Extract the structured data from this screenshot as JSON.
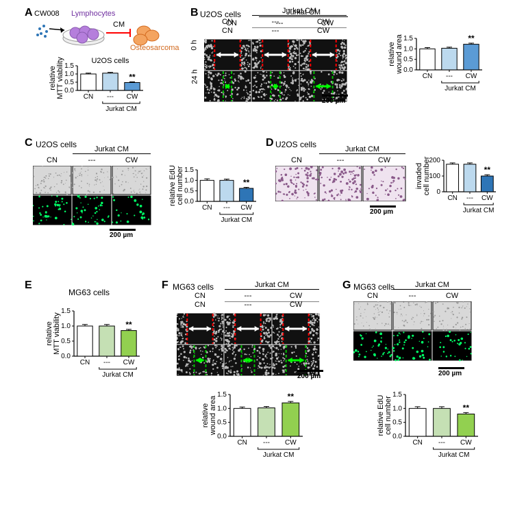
{
  "colors": {
    "white": "#ffffff",
    "lightblue": "#bcd9ee",
    "blue": "#5b9bd5",
    "darkblue": "#2e75b6",
    "lightgreen": "#c5e0b4",
    "green": "#92d050",
    "black": "#000000",
    "gray_bf": "#d0d0d0",
    "dark_scratch": "#1a1a1a",
    "edu_dark": "#000000",
    "edu_green_dot": "#00ff7f",
    "invasion_pink": "#dcc5d8",
    "red": "#ff0000",
    "line_green": "#00c000",
    "orange": "#f4a460",
    "purple": "#b57edc"
  },
  "A": {
    "panel_label": "A",
    "diagram": {
      "cw008": "CW008",
      "lymph": "Lymphocytes",
      "cm": "CM",
      "osteo": "Osteosarcoma"
    },
    "chart": {
      "title": "U2OS cells",
      "ylabel": "relative\nMTT viability",
      "ylim": [
        0,
        1.5
      ],
      "ytick_step": 0.5,
      "categories": [
        "CN",
        "---",
        "CW"
      ],
      "values": [
        1.0,
        1.05,
        0.48
      ],
      "errors": [
        0.05,
        0.05,
        0.04
      ],
      "bar_colors": [
        "#ffffff",
        "#bcd9ee",
        "#5b9bd5"
      ],
      "sig": [
        "",
        "",
        "**"
      ],
      "bracket_label": "Jurkat CM"
    }
  },
  "B": {
    "panel_label": "B",
    "cell_title": "U2OS cells",
    "rows": [
      "0 h",
      "24 h"
    ],
    "categories": [
      "CN",
      "---",
      "CW"
    ],
    "bracket_label": "Jurkat CM",
    "scale": "200 µm",
    "chart": {
      "ylabel": "relative\nwound area",
      "ylim": [
        0,
        1.5
      ],
      "ytick_step": 0.5,
      "categories": [
        "CN",
        "---",
        "CW"
      ],
      "values": [
        1.0,
        1.03,
        1.22
      ],
      "errors": [
        0.06,
        0.05,
        0.05
      ],
      "bar_colors": [
        "#ffffff",
        "#bcd9ee",
        "#5b9bd5"
      ],
      "sig": [
        "",
        "",
        "**"
      ],
      "bracket_label": "Jurkat CM"
    }
  },
  "C": {
    "panel_label": "C",
    "cell_title": "U2OS cells",
    "categories": [
      "CN",
      "---",
      "CW"
    ],
    "bracket_label": "Jurkat CM",
    "scale": "200 µm",
    "chart": {
      "ylabel": "relative EdU\ncell number",
      "ylim": [
        0,
        1.5
      ],
      "ytick_step": 0.5,
      "categories": [
        "CN",
        "---",
        "CW"
      ],
      "values": [
        1.0,
        1.0,
        0.62
      ],
      "errors": [
        0.07,
        0.06,
        0.05
      ],
      "bar_colors": [
        "#ffffff",
        "#bcd9ee",
        "#2e75b6"
      ],
      "sig": [
        "",
        "",
        "**"
      ],
      "bracket_label": "Jurkat CM"
    }
  },
  "D": {
    "panel_label": "D",
    "cell_title": "U2OS cells",
    "categories": [
      "CN",
      "---",
      "CW"
    ],
    "bracket_label": "Jurkat CM",
    "scale": "200 µm",
    "chart": {
      "ylabel": "invaded\ncell number",
      "ylim": [
        0,
        200
      ],
      "ytick_step": 100,
      "categories": [
        "CN",
        "---",
        "CW"
      ],
      "values": [
        175,
        175,
        100
      ],
      "errors": [
        8,
        8,
        8
      ],
      "bar_colors": [
        "#ffffff",
        "#bcd9ee",
        "#2e75b6"
      ],
      "sig": [
        "",
        "",
        "**"
      ],
      "bracket_label": "Jurkat CM"
    }
  },
  "E": {
    "panel_label": "E",
    "cell_title": "MG63 cells",
    "chart": {
      "ylabel": "relative\nMTT viability",
      "ylim": [
        0,
        1.5
      ],
      "ytick_step": 0.5,
      "categories": [
        "CN",
        "---",
        "CW"
      ],
      "values": [
        1.0,
        1.0,
        0.85
      ],
      "errors": [
        0.05,
        0.05,
        0.04
      ],
      "bar_colors": [
        "#ffffff",
        "#c5e0b4",
        "#92d050"
      ],
      "sig": [
        "",
        "",
        "**"
      ],
      "bracket_label": "Jurkat CM"
    }
  },
  "F": {
    "panel_label": "F",
    "cell_title": "MG63 cells",
    "rows": [
      "0 h",
      "24 h"
    ],
    "categories": [
      "CN",
      "---",
      "CW"
    ],
    "bracket_label": "Jurkat CM",
    "scale": "200 µm",
    "chart": {
      "ylabel": "relative\nwound area",
      "ylim": [
        0,
        1.5
      ],
      "ytick_step": 0.5,
      "categories": [
        "CN",
        "---",
        "CW"
      ],
      "values": [
        1.0,
        1.02,
        1.2
      ],
      "errors": [
        0.05,
        0.05,
        0.05
      ],
      "bar_colors": [
        "#ffffff",
        "#c5e0b4",
        "#92d050"
      ],
      "sig": [
        "",
        "",
        "**"
      ],
      "bracket_label": "Jurkat CM"
    }
  },
  "G": {
    "panel_label": "G",
    "cell_title": "MG63 cells",
    "categories": [
      "CN",
      "---",
      "CW"
    ],
    "bracket_label": "Jurkat CM",
    "scale": "200 µm",
    "chart": {
      "ylabel": "relative EdU\ncell number",
      "ylim": [
        0,
        1.5
      ],
      "ytick_step": 0.5,
      "categories": [
        "CN",
        "---",
        "CW"
      ],
      "values": [
        1.0,
        1.0,
        0.8
      ],
      "errors": [
        0.06,
        0.06,
        0.05
      ],
      "bar_colors": [
        "#ffffff",
        "#c5e0b4",
        "#92d050"
      ],
      "sig": [
        "",
        "",
        "**"
      ],
      "bracket_label": "Jurkat CM"
    }
  },
  "chart_style": {
    "bar_width": 0.7,
    "axis_color": "#000000",
    "font_size_axis": 11,
    "font_size_tick": 10
  }
}
